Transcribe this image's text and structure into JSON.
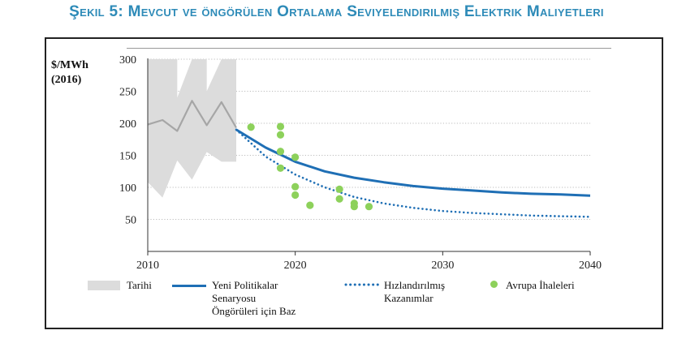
{
  "figure_title": "Şekil 5: Mevcut ve öngörülen Ortalama Seviyelendirilmiş Elektrik Maliyetleri",
  "colors": {
    "title": "#2E8BB8",
    "band": "#DCDCDC",
    "history_line": "#A6A6A6",
    "base": "#1F6FB5",
    "accelerated": "#1F6FB5",
    "auctions": "#8DD15B"
  },
  "chart_data": {
    "type": "line",
    "ylabel_line1": "$/MWh",
    "ylabel_line2": "(2016)",
    "xlim": [
      2010,
      2040
    ],
    "ylim": [
      0,
      300
    ],
    "xticks": [
      "2010",
      "2020",
      "2030",
      "2040"
    ],
    "yticks": [
      "50",
      "100",
      "150",
      "200",
      "250",
      "300"
    ],
    "historical_range": {
      "name": "Tarihi",
      "x_start": 2010,
      "x_end": 2016,
      "upper": 300,
      "lower": [
        [
          2010,
          108
        ],
        [
          2011,
          84
        ],
        [
          2012,
          142
        ],
        [
          2013,
          112
        ],
        [
          2014,
          155
        ],
        [
          2015,
          140
        ],
        [
          2016,
          140
        ]
      ],
      "notches": [
        [
          2012,
          300
        ],
        [
          2012,
          240
        ],
        [
          2013,
          300
        ],
        [
          2014,
          300
        ],
        [
          2014,
          250
        ],
        [
          2015,
          300
        ]
      ]
    },
    "series": [
      {
        "name": "Tarihi (ortalama)",
        "style": "line-grey",
        "points": [
          [
            2010,
            198
          ],
          [
            2011,
            205
          ],
          [
            2012,
            188
          ],
          [
            2013,
            235
          ],
          [
            2014,
            197
          ],
          [
            2015,
            233
          ],
          [
            2016,
            193
          ]
        ]
      },
      {
        "name": "Yeni Politikalar Senaryosu Öngörüleri için Baz",
        "style": "solid",
        "points": [
          [
            2016,
            190
          ],
          [
            2018,
            162
          ],
          [
            2020,
            140
          ],
          [
            2022,
            125
          ],
          [
            2024,
            115
          ],
          [
            2026,
            108
          ],
          [
            2028,
            102
          ],
          [
            2030,
            98
          ],
          [
            2032,
            95
          ],
          [
            2034,
            92
          ],
          [
            2036,
            90
          ],
          [
            2038,
            89
          ],
          [
            2040,
            87
          ]
        ]
      },
      {
        "name": "Hızlandırılmış Kazanımlar",
        "style": "dotted",
        "points": [
          [
            2016,
            190
          ],
          [
            2018,
            148
          ],
          [
            2020,
            120
          ],
          [
            2022,
            100
          ],
          [
            2024,
            85
          ],
          [
            2026,
            75
          ],
          [
            2028,
            68
          ],
          [
            2030,
            63
          ],
          [
            2032,
            60
          ],
          [
            2034,
            58
          ],
          [
            2036,
            56
          ],
          [
            2038,
            55
          ],
          [
            2040,
            54
          ]
        ]
      },
      {
        "name": "Avrupa İhaleleri",
        "style": "scatter",
        "points": [
          [
            2017,
            194
          ],
          [
            2019,
            195
          ],
          [
            2019,
            182
          ],
          [
            2019,
            156
          ],
          [
            2019,
            130
          ],
          [
            2020,
            147
          ],
          [
            2020,
            101
          ],
          [
            2020,
            88
          ],
          [
            2021,
            72
          ],
          [
            2023,
            97
          ],
          [
            2023,
            82
          ],
          [
            2024,
            75
          ],
          [
            2024,
            70
          ],
          [
            2025,
            70
          ]
        ]
      }
    ],
    "legend": [
      {
        "key": "band",
        "label": "Tarihi"
      },
      {
        "key": "solid",
        "label_lines": [
          "Yeni Politikalar",
          "Senaryosu",
          "Öngörüleri için Baz"
        ]
      },
      {
        "key": "dotted",
        "label_lines": [
          "Hızlandırılmış",
          "Kazanımlar"
        ]
      },
      {
        "key": "scatter",
        "label": "Avrupa İhaleleri"
      }
    ]
  }
}
